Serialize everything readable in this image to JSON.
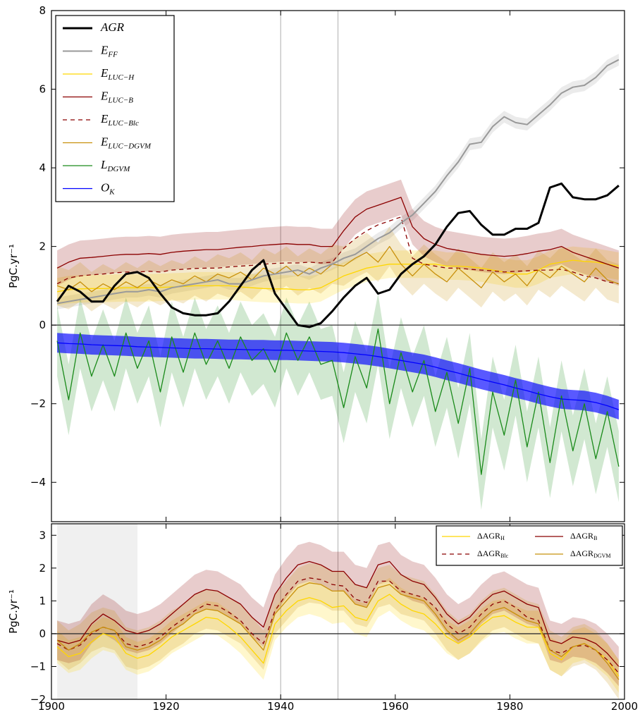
{
  "chart_data": [
    {
      "type": "line",
      "ylabel": "PgC.yr⁻¹",
      "xlim": [
        1900,
        2000
      ],
      "ylim": [
        -5,
        8
      ],
      "yticks": [
        {
          "value": -4,
          "label": "−4"
        },
        {
          "value": -2,
          "label": "−2"
        },
        0,
        2,
        4,
        6,
        8
      ],
      "vlines": [
        1940,
        1950
      ],
      "hline": 0,
      "legend": "upper left",
      "x": [
        1901,
        1903,
        1905,
        1907,
        1909,
        1911,
        1913,
        1915,
        1917,
        1919,
        1921,
        1923,
        1925,
        1927,
        1929,
        1931,
        1933,
        1935,
        1937,
        1939,
        1941,
        1943,
        1945,
        1947,
        1949,
        1951,
        1953,
        1955,
        1957,
        1959,
        1961,
        1963,
        1965,
        1967,
        1969,
        1971,
        1973,
        1975,
        1977,
        1979,
        1981,
        1983,
        1985,
        1987,
        1989,
        1991,
        1993,
        1995,
        1997,
        1999
      ],
      "series": [
        {
          "name": "AGR",
          "color": "#000000",
          "linewidth": 3,
          "values": [
            0.6,
            1.0,
            0.85,
            0.6,
            0.6,
            1.0,
            1.3,
            1.35,
            1.2,
            0.8,
            0.45,
            0.3,
            0.25,
            0.25,
            0.3,
            0.6,
            1.0,
            1.4,
            1.65,
            0.8,
            0.4,
            0.0,
            -0.05,
            0.05,
            0.35,
            0.7,
            1.0,
            1.2,
            0.8,
            0.9,
            1.3,
            1.55,
            1.75,
            2.05,
            2.5,
            2.85,
            2.9,
            2.55,
            2.3,
            2.3,
            2.45,
            2.45,
            2.6,
            3.5,
            3.6,
            3.25,
            3.2,
            3.2,
            3.3,
            3.55
          ]
        },
        {
          "name": "E",
          "sub": "FF",
          "color": "#999999",
          "linewidth": 2,
          "band": 0.15,
          "values": [
            0.55,
            0.6,
            0.65,
            0.7,
            0.75,
            0.8,
            0.85,
            0.85,
            0.9,
            0.85,
            0.95,
            1.0,
            1.05,
            1.1,
            1.15,
            1.05,
            1.05,
            1.15,
            1.25,
            1.3,
            1.35,
            1.4,
            1.3,
            1.45,
            1.55,
            1.7,
            1.8,
            2.0,
            2.2,
            2.35,
            2.6,
            2.8,
            3.1,
            3.4,
            3.8,
            4.15,
            4.6,
            4.65,
            5.05,
            5.3,
            5.15,
            5.1,
            5.35,
            5.6,
            5.9,
            6.05,
            6.1,
            6.3,
            6.6,
            6.75
          ]
        },
        {
          "name": "E",
          "sub": "LUC−H",
          "color": "#ffd700",
          "linewidth": 1.3,
          "band": 0.35,
          "values": [
            0.85,
            0.9,
            0.92,
            0.93,
            0.93,
            0.94,
            0.95,
            0.95,
            0.95,
            0.96,
            0.97,
            0.98,
            1.0,
            1.0,
            1.0,
            1.0,
            0.97,
            0.95,
            0.93,
            0.92,
            0.92,
            0.9,
            0.9,
            0.95,
            1.1,
            1.25,
            1.35,
            1.45,
            1.5,
            1.55,
            1.55,
            1.55,
            1.55,
            1.55,
            1.5,
            1.5,
            1.48,
            1.45,
            1.4,
            1.35,
            1.3,
            1.3,
            1.4,
            1.55,
            1.6,
            1.65,
            1.62,
            1.6,
            1.55,
            1.5
          ]
        },
        {
          "name": "E",
          "sub": "LUC−B",
          "color": "#8b0000",
          "linewidth": 1.3,
          "band": 0.45,
          "values": [
            1.45,
            1.6,
            1.7,
            1.72,
            1.75,
            1.78,
            1.8,
            1.8,
            1.82,
            1.8,
            1.85,
            1.88,
            1.9,
            1.92,
            1.92,
            1.95,
            1.98,
            2.0,
            2.03,
            2.05,
            2.07,
            2.05,
            2.05,
            2.0,
            2.0,
            2.4,
            2.75,
            2.95,
            3.05,
            3.15,
            3.25,
            2.5,
            2.2,
            2.05,
            1.95,
            1.9,
            1.85,
            1.8,
            1.77,
            1.75,
            1.77,
            1.82,
            1.88,
            1.92,
            2.0,
            1.85,
            1.75,
            1.65,
            1.55,
            1.45
          ]
        },
        {
          "name": "E",
          "sub": "LUC−Blc",
          "color": "#8b0000",
          "linewidth": 1.3,
          "dashed": true,
          "values": [
            1.05,
            1.2,
            1.25,
            1.28,
            1.3,
            1.33,
            1.35,
            1.35,
            1.37,
            1.35,
            1.4,
            1.42,
            1.44,
            1.45,
            1.45,
            1.48,
            1.5,
            1.52,
            1.55,
            1.57,
            1.58,
            1.58,
            1.6,
            1.58,
            1.6,
            1.95,
            2.2,
            2.4,
            2.55,
            2.65,
            2.75,
            1.7,
            1.55,
            1.5,
            1.45,
            1.45,
            1.42,
            1.4,
            1.38,
            1.35,
            1.37,
            1.38,
            1.4,
            1.4,
            1.42,
            1.35,
            1.25,
            1.2,
            1.1,
            1.05
          ]
        },
        {
          "name": "E",
          "sub": "LUC−DGVM",
          "color": "#c8900c",
          "linewidth": 1.3,
          "band": 0.5,
          "values": [
            1.0,
            0.9,
            1.1,
            0.85,
            1.05,
            0.9,
            1.1,
            0.95,
            1.15,
            1.0,
            1.15,
            1.05,
            1.25,
            1.1,
            1.3,
            1.2,
            1.35,
            1.15,
            1.45,
            1.3,
            1.5,
            1.25,
            1.45,
            1.3,
            1.55,
            1.5,
            1.7,
            1.85,
            1.6,
            2.0,
            1.55,
            1.25,
            1.55,
            1.3,
            1.1,
            1.45,
            1.2,
            0.95,
            1.35,
            1.1,
            1.3,
            1.0,
            1.4,
            1.2,
            1.5,
            1.3,
            1.1,
            1.45,
            1.15,
            1.05
          ]
        },
        {
          "name": "L",
          "sub": "DGVM",
          "color": "#1a8a1a",
          "linewidth": 1.3,
          "band": 0.9,
          "values": [
            -0.4,
            -1.9,
            -0.2,
            -1.3,
            -0.5,
            -1.3,
            -0.2,
            -1.1,
            -0.4,
            -1.7,
            -0.3,
            -1.2,
            -0.2,
            -1.0,
            -0.4,
            -1.1,
            -0.3,
            -0.9,
            -0.6,
            -1.2,
            -0.2,
            -0.9,
            -0.3,
            -1.0,
            -0.9,
            -2.1,
            -0.8,
            -1.6,
            -0.1,
            -2.0,
            -0.7,
            -1.7,
            -0.9,
            -2.2,
            -1.2,
            -2.5,
            -1.1,
            -3.8,
            -1.7,
            -2.8,
            -1.4,
            -3.1,
            -1.7,
            -3.5,
            -1.8,
            -3.2,
            -2.0,
            -3.4,
            -2.2,
            -3.6
          ]
        },
        {
          "name": "O",
          "sub": "K",
          "color": "#0000ff",
          "linewidth": 1.3,
          "band": 0.25,
          "band_opacity": 0.65,
          "values": [
            -0.45,
            -0.47,
            -0.48,
            -0.5,
            -0.51,
            -0.52,
            -0.53,
            -0.55,
            -0.56,
            -0.57,
            -0.58,
            -0.59,
            -0.6,
            -0.6,
            -0.61,
            -0.62,
            -0.62,
            -0.63,
            -0.63,
            -0.64,
            -0.64,
            -0.65,
            -0.66,
            -0.67,
            -0.68,
            -0.7,
            -0.73,
            -0.76,
            -0.8,
            -0.85,
            -0.9,
            -0.95,
            -1.0,
            -1.07,
            -1.15,
            -1.22,
            -1.3,
            -1.38,
            -1.45,
            -1.52,
            -1.6,
            -1.67,
            -1.75,
            -1.82,
            -1.88,
            -1.9,
            -1.92,
            -1.97,
            -2.05,
            -2.15
          ]
        }
      ]
    },
    {
      "type": "line",
      "ylabel": "PgC.yr⁻¹",
      "xlim": [
        1900,
        2000
      ],
      "ylim": [
        -2,
        3.35
      ],
      "yticks": [
        {
          "value": -2,
          "label": "−2"
        },
        {
          "value": -1,
          "label": "−1"
        },
        0,
        1,
        2,
        3
      ],
      "xticks": [
        1900,
        1920,
        1940,
        1960,
        1980,
        2000
      ],
      "vlines": [
        1940,
        1950
      ],
      "hline": 0,
      "shaded_span": [
        1901,
        1915
      ],
      "legend": "upper right",
      "legend_columns": 2,
      "x": [
        1901,
        1903,
        1905,
        1907,
        1909,
        1911,
        1913,
        1915,
        1917,
        1919,
        1921,
        1923,
        1925,
        1927,
        1929,
        1931,
        1933,
        1935,
        1937,
        1939,
        1941,
        1943,
        1945,
        1947,
        1949,
        1951,
        1953,
        1955,
        1957,
        1959,
        1961,
        1963,
        1965,
        1967,
        1969,
        1971,
        1973,
        1975,
        1977,
        1979,
        1981,
        1983,
        1985,
        1987,
        1989,
        1991,
        1993,
        1995,
        1997,
        1999
      ],
      "series": [
        {
          "name": "ΔAGR",
          "sub": "H",
          "color": "#ffd700",
          "linewidth": 1.3,
          "band": 0.5,
          "values": [
            -0.4,
            -0.7,
            -0.6,
            -0.25,
            0.0,
            -0.1,
            -0.6,
            -0.75,
            -0.65,
            -0.4,
            -0.1,
            0.1,
            0.3,
            0.5,
            0.45,
            0.2,
            -0.1,
            -0.5,
            -0.9,
            0.3,
            0.7,
            1.0,
            1.1,
            1.0,
            0.8,
            0.85,
            0.5,
            0.4,
            1.0,
            1.2,
            0.9,
            0.7,
            0.6,
            0.3,
            -0.1,
            -0.3,
            -0.1,
            0.25,
            0.5,
            0.55,
            0.35,
            0.2,
            0.2,
            -0.6,
            -0.8,
            -0.4,
            -0.3,
            -0.5,
            -0.8,
            -1.3
          ]
        },
        {
          "name": "ΔAGR",
          "sub": "Blc",
          "color": "#8b0000",
          "linewidth": 1.3,
          "dashed": true,
          "values": [
            -0.3,
            -0.5,
            -0.35,
            0.0,
            0.2,
            0.1,
            -0.3,
            -0.4,
            -0.3,
            -0.1,
            0.2,
            0.45,
            0.7,
            0.9,
            0.85,
            0.65,
            0.4,
            0.0,
            -0.3,
            0.7,
            1.2,
            1.6,
            1.7,
            1.65,
            1.5,
            1.45,
            1.05,
            0.95,
            1.6,
            1.6,
            1.3,
            1.2,
            1.1,
            0.8,
            0.3,
            0.0,
            0.2,
            0.6,
            0.9,
            1.0,
            0.8,
            0.5,
            0.4,
            -0.5,
            -0.6,
            -0.4,
            -0.35,
            -0.5,
            -0.8,
            -1.2
          ]
        },
        {
          "name": "ΔAGR",
          "sub": "B",
          "color": "#8b0000",
          "linewidth": 1.3,
          "band": 0.6,
          "values": [
            -0.2,
            -0.3,
            -0.2,
            0.3,
            0.6,
            0.4,
            0.1,
            0.0,
            0.1,
            0.3,
            0.6,
            0.9,
            1.2,
            1.35,
            1.3,
            1.1,
            0.9,
            0.5,
            0.2,
            1.2,
            1.7,
            2.1,
            2.2,
            2.1,
            1.9,
            1.9,
            1.5,
            1.4,
            2.1,
            2.2,
            1.8,
            1.6,
            1.5,
            1.1,
            0.6,
            0.3,
            0.5,
            0.9,
            1.2,
            1.3,
            1.1,
            0.9,
            0.8,
            -0.2,
            -0.3,
            -0.1,
            -0.15,
            -0.3,
            -0.6,
            -1.0
          ]
        },
        {
          "name": "ΔAGR",
          "sub": "DGVM",
          "color": "#c8900c",
          "linewidth": 1.3,
          "band": 0.6,
          "values": [
            -0.2,
            -0.5,
            -0.3,
            0.05,
            0.2,
            0.1,
            -0.4,
            -0.5,
            -0.4,
            -0.2,
            0.1,
            0.3,
            0.6,
            0.75,
            0.7,
            0.5,
            0.3,
            -0.1,
            -0.5,
            0.6,
            1.0,
            1.4,
            1.55,
            1.5,
            1.3,
            1.3,
            0.9,
            0.8,
            1.4,
            1.5,
            1.2,
            1.1,
            1.0,
            0.6,
            0.1,
            -0.2,
            0.0,
            0.4,
            0.7,
            0.8,
            0.6,
            0.4,
            0.3,
            -0.5,
            -0.7,
            -0.4,
            -0.3,
            -0.5,
            -0.9,
            -1.4
          ]
        }
      ]
    }
  ]
}
